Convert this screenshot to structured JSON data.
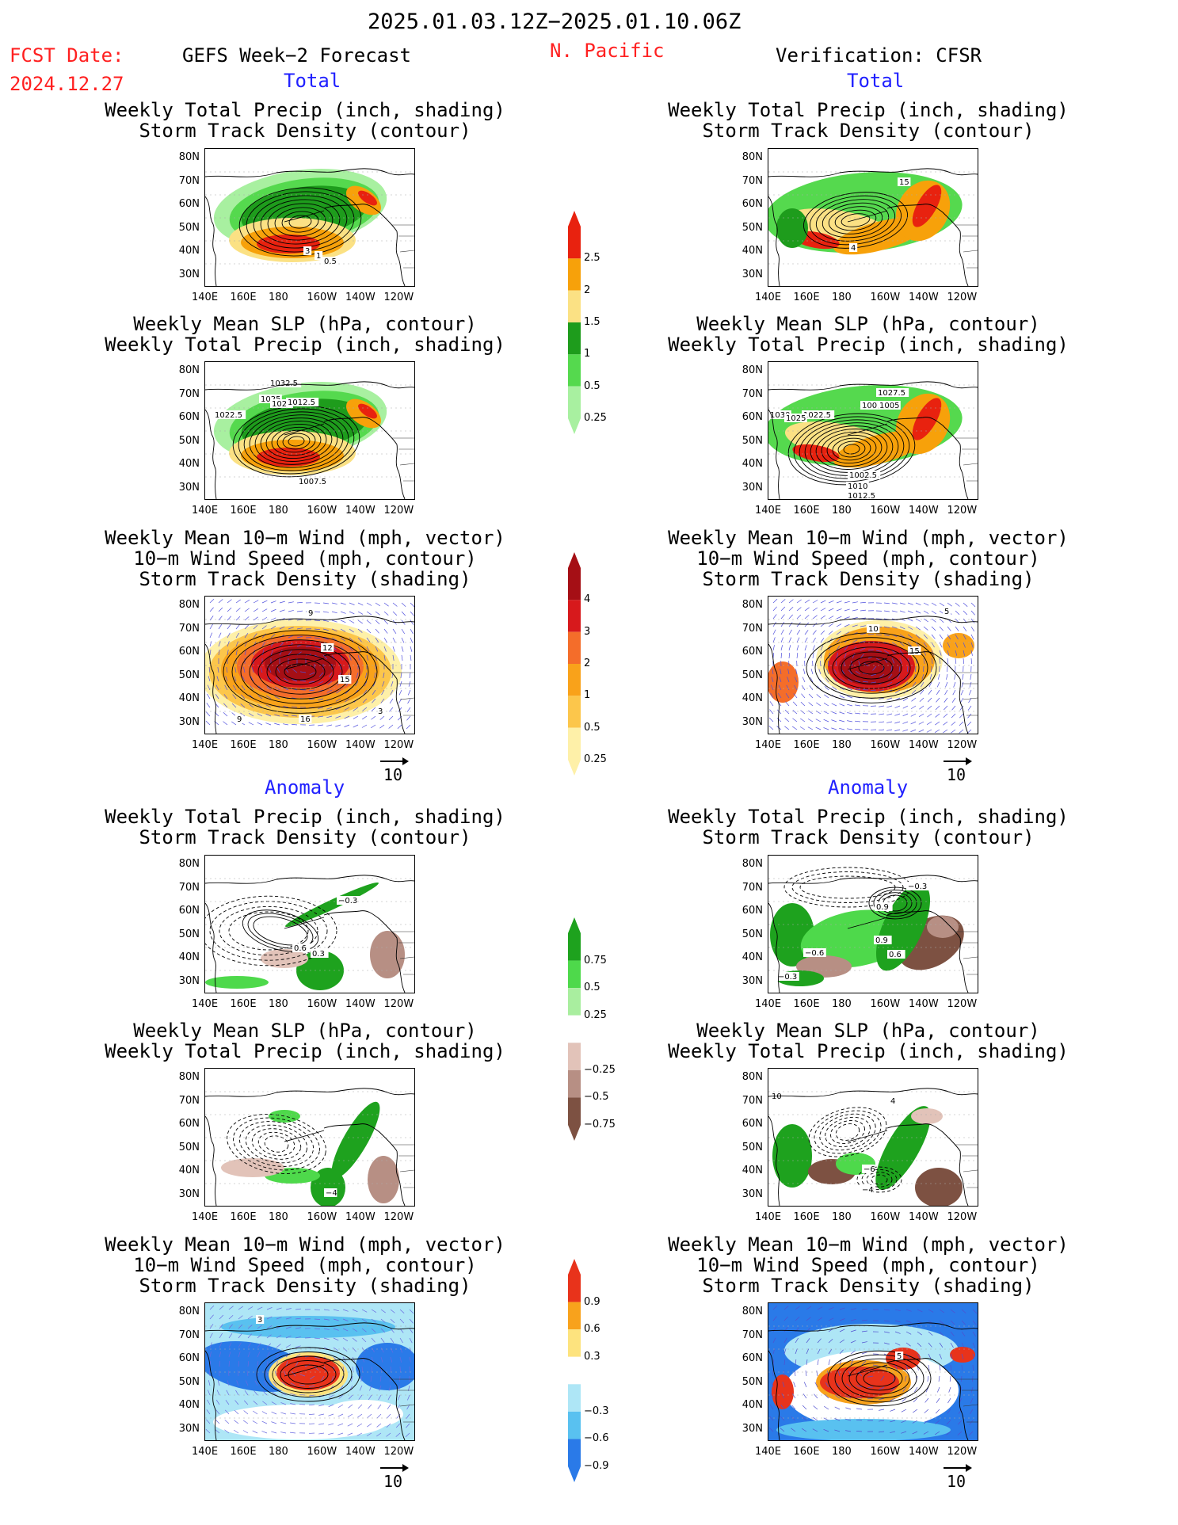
{
  "header": {
    "date_range": "2025.01.03.12Z−2025.01.10.06Z",
    "fcst_label": "FCST Date:",
    "fcst_date": "2024.12.27",
    "forecast_title": "GEFS Week−2 Forecast",
    "region": "N. Pacific",
    "verification_title": "Verification: CFSR"
  },
  "sections": {
    "total": "Total",
    "anomaly": "Anomaly"
  },
  "panel_titles": {
    "precip_track": "Weekly Total Precip (inch, shading)\nStorm Track Density (contour)",
    "slp_precip": "Weekly Mean SLP (hPa, contour)\nWeekly Total Precip (inch, shading)",
    "wind_track": "Weekly Mean 10−m Wind (mph, vector)\n10−m Wind Speed (mph, contour)\nStorm Track Density (shading)"
  },
  "axes": {
    "lat": [
      "80N",
      "70N",
      "60N",
      "50N",
      "40N",
      "30N"
    ],
    "lon": [
      "140E",
      "160E",
      "180",
      "160W",
      "140W",
      "120W"
    ]
  },
  "vector_ref": "10",
  "colorbars": {
    "precip_total": {
      "ticks": [
        "2.5",
        "2",
        "1.5",
        "1",
        "0.5",
        "0.25"
      ],
      "colors": [
        "#e8220f",
        "#f7a10a",
        "#fbe184",
        "#1e9c1c",
        "#55d94e",
        "#a8f0a0"
      ]
    },
    "track_total": {
      "ticks": [
        "4",
        "3",
        "2",
        "1",
        "0.5",
        "0.25"
      ],
      "colors": [
        "#a50f15",
        "#d7191c",
        "#f46d2a",
        "#f9a21a",
        "#fcc64b",
        "#fef0a8"
      ]
    },
    "precip_anom": {
      "ticks": [
        "0.75",
        "0.5",
        "0.25",
        "−0.25",
        "−0.5",
        "−0.75"
      ],
      "colors": [
        "#1ea21e",
        "#4ed94b",
        "#a9ee9f",
        "#ffffff",
        "#e2c3b9",
        "#b78f84",
        "#7d5142"
      ]
    },
    "track_anom": {
      "ticks": [
        "0.9",
        "0.6",
        "0.3",
        "−0.3",
        "−0.6",
        "−0.9"
      ],
      "colors": [
        "#e8331b",
        "#f8a21c",
        "#fde37e",
        "#ffffff",
        "#aee6f6",
        "#59c1f0",
        "#2a7ae8"
      ]
    }
  },
  "contour_labels": {
    "fcst_precip": [
      "3",
      "1",
      "0.5"
    ],
    "verif_precip": [
      "15",
      "4"
    ],
    "fcst_slp": [
      "1032.5",
      "1025",
      "1020",
      "1012.5",
      "1022.5",
      "1007.5"
    ],
    "verif_slp": [
      "1027.5",
      "1007.5",
      "1005",
      "1022.5",
      "1030",
      "1025",
      "1002.5",
      "1010",
      "1012.5"
    ],
    "fcst_wind": [
      "9",
      "12",
      "15",
      "16",
      "3",
      "9"
    ],
    "verif_wind": [
      "5",
      "10",
      "15"
    ],
    "fcst_precip_anom": [
      "−0.3",
      "0.6",
      "0.3"
    ],
    "verif_precip_anom": [
      "−0.3",
      "0.9",
      "0.9",
      "0.6",
      "−0.6",
      "−0.3"
    ],
    "fcst_slp_anom": [
      "−4"
    ],
    "verif_slp_anom": [
      "10",
      "4",
      "−6",
      "−4"
    ],
    "fcst_wind_anom": [
      "3"
    ],
    "verif_wind_anom": [
      "5"
    ]
  }
}
